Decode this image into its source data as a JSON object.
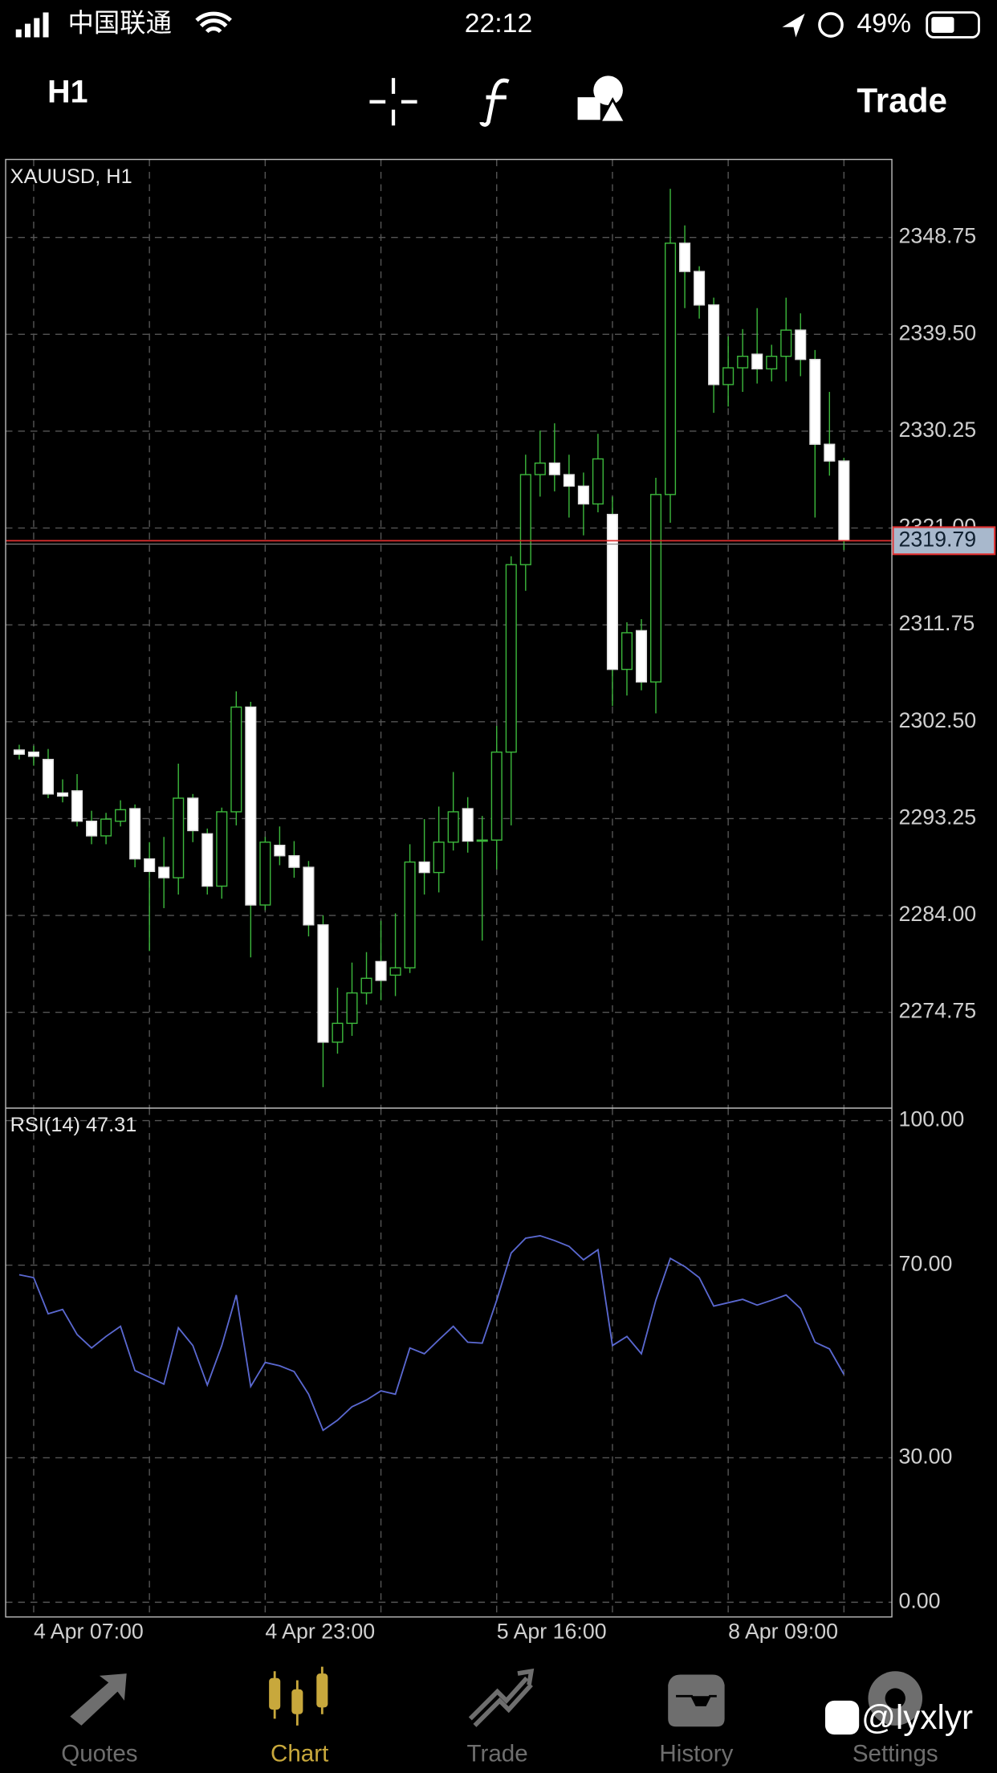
{
  "status_bar": {
    "carrier": "中国联通",
    "time": "22:12",
    "battery": "49%"
  },
  "toolbar": {
    "timeframe": "H1",
    "trade": "Trade"
  },
  "chart_data": [
    {
      "type": "candlestick",
      "title": "XAUUSD, H1",
      "categories": [
        null,
        "4 Apr 07:00",
        null,
        null,
        null,
        null,
        null,
        null,
        null,
        null,
        null,
        null,
        null,
        null,
        null,
        null,
        null,
        "4 Apr 23:00",
        null,
        null,
        null,
        null,
        null,
        null,
        null,
        null,
        null,
        null,
        null,
        null,
        null,
        null,
        null,
        "5 Apr 16:00",
        null,
        null,
        null,
        null,
        null,
        null,
        null,
        null,
        null,
        null,
        null,
        null,
        null,
        null,
        null,
        "8 Apr 09:00",
        null,
        null,
        null,
        null,
        null,
        null,
        null,
        null
      ],
      "open": [
        2299.8,
        2299.6,
        2298.9,
        2295.7,
        2295.9,
        2293.0,
        2291.6,
        2293.0,
        2294.2,
        2289.4,
        2288.6,
        2287.6,
        2295.2,
        2291.8,
        2286.8,
        2293.9,
        2303.9,
        2285.0,
        2290.7,
        2289.7,
        2288.6,
        2283.1,
        2271.9,
        2273.7,
        2276.6,
        2279.6,
        2278.3,
        2279.0,
        2289.1,
        2288.1,
        2291.0,
        2294.2,
        2291.1,
        2291.2,
        2299.6,
        2317.5,
        2326.1,
        2327.2,
        2326.1,
        2325.0,
        2323.3,
        2322.3,
        2307.5,
        2311.2,
        2306.3,
        2324.2,
        2348.2,
        2345.5,
        2342.3,
        2334.7,
        2336.3,
        2337.6,
        2336.2,
        2337.4,
        2339.9,
        2337.1,
        2329.0,
        2327.4
      ],
      "high": [
        2300.3,
        2300.2,
        2299.9,
        2297.0,
        2297.5,
        2294.0,
        2293.8,
        2295.0,
        2294.6,
        2291.0,
        2291.5,
        2298.5,
        2295.6,
        2292.3,
        2294.3,
        2305.4,
        2304.4,
        2291.5,
        2292.5,
        2291.1,
        2289.2,
        2284.0,
        2277.1,
        2279.5,
        2280.5,
        2283.5,
        2284.2,
        2290.8,
        2293.2,
        2294.4,
        2297.7,
        2295.3,
        2293.5,
        2302.1,
        2318.3,
        2328.0,
        2330.3,
        2331.0,
        2328.0,
        2326.3,
        2330.0,
        2324.0,
        2312.0,
        2312.3,
        2325.8,
        2353.4,
        2349.9,
        2346.0,
        2343.0,
        2339.3,
        2340.0,
        2342.0,
        2338.5,
        2343.0,
        2341.5,
        2338.0,
        2334.0,
        2327.7
      ],
      "low": [
        2298.9,
        2298.3,
        2295.2,
        2294.8,
        2292.5,
        2290.8,
        2290.8,
        2292.5,
        2288.6,
        2280.6,
        2284.7,
        2286.0,
        2291.0,
        2286.0,
        2285.6,
        2292.6,
        2280.0,
        2284.5,
        2288.8,
        2287.6,
        2282.0,
        2267.6,
        2270.8,
        2272.5,
        2275.5,
        2275.9,
        2276.3,
        2278.5,
        2286.0,
        2286.2,
        2290.2,
        2290.0,
        2281.6,
        2288.4,
        2292.6,
        2315.0,
        2324.0,
        2324.5,
        2322.0,
        2320.3,
        2322.5,
        2304.0,
        2305.0,
        2305.5,
        2303.3,
        2321.5,
        2342.0,
        2341.0,
        2332.0,
        2332.6,
        2334.0,
        2334.8,
        2335.0,
        2335.0,
        2335.5,
        2322.0,
        2326.0,
        2318.9
      ],
      "close": [
        2299.4,
        2299.2,
        2295.6,
        2295.4,
        2293.0,
        2291.6,
        2293.2,
        2294.1,
        2289.4,
        2288.2,
        2287.6,
        2295.2,
        2292.1,
        2286.8,
        2293.9,
        2303.9,
        2285.0,
        2291.0,
        2289.7,
        2288.6,
        2283.1,
        2271.9,
        2273.7,
        2276.6,
        2278.0,
        2277.8,
        2279.0,
        2289.1,
        2288.1,
        2291.0,
        2293.9,
        2291.1,
        2291.2,
        2299.6,
        2317.5,
        2326.1,
        2327.2,
        2326.1,
        2325.0,
        2323.3,
        2327.6,
        2307.5,
        2311.0,
        2306.3,
        2324.2,
        2348.2,
        2345.5,
        2342.3,
        2334.7,
        2336.3,
        2337.4,
        2336.2,
        2337.4,
        2339.9,
        2337.1,
        2329.0,
        2327.4,
        2319.79
      ],
      "up_color": "#3cb83c",
      "down_color": "#ffffff",
      "current_price": 2319.79,
      "ylim": [
        2265.6,
        2356.2
      ],
      "yticks": [
        2274.75,
        {
          "value": 2284.0,
          "label": "2284.00"
        },
        2293.25,
        {
          "value": 2302.5,
          "label": "2302.50"
        },
        2311.75,
        {
          "value": 2321.0,
          "label": "2321.00"
        },
        2330.25,
        {
          "value": 2339.5,
          "label": "2339.50"
        },
        2348.75
      ],
      "grid": true
    },
    {
      "type": "line",
      "title": "RSI(14) 47.31",
      "color": "#5a68d0",
      "values": [
        68.0,
        67.4,
        59.9,
        60.8,
        55.6,
        52.8,
        55.2,
        57.3,
        48.1,
        46.7,
        45.3,
        57.0,
        53.3,
        45.1,
        53.3,
        63.8,
        44.8,
        49.8,
        49.1,
        47.9,
        43.2,
        35.7,
        37.8,
        40.6,
        42.0,
        43.9,
        43.2,
        52.8,
        51.6,
        54.5,
        57.3,
        54.0,
        53.8,
        62.7,
        72.5,
        75.6,
        76.1,
        75.1,
        73.9,
        71.1,
        73.2,
        53.3,
        55.2,
        51.6,
        62.7,
        71.4,
        69.7,
        67.4,
        61.5,
        62.2,
        62.9,
        61.7,
        62.7,
        63.8,
        61.0,
        54.0,
        52.6,
        47.31
      ],
      "ylim": [
        -3.05,
        102.6
      ],
      "yticks": [
        {
          "value": 0,
          "label": "0.00"
        },
        {
          "value": 30,
          "label": "30.00"
        },
        {
          "value": 70,
          "label": "70.00"
        },
        {
          "value": 100,
          "label": "100.00"
        }
      ],
      "grid": true
    }
  ],
  "tab_bar": {
    "tabs": [
      "Quotes",
      "Chart",
      "Trade",
      "History",
      "Settings"
    ],
    "active": "Chart"
  },
  "watermark": "@lyxlyr"
}
